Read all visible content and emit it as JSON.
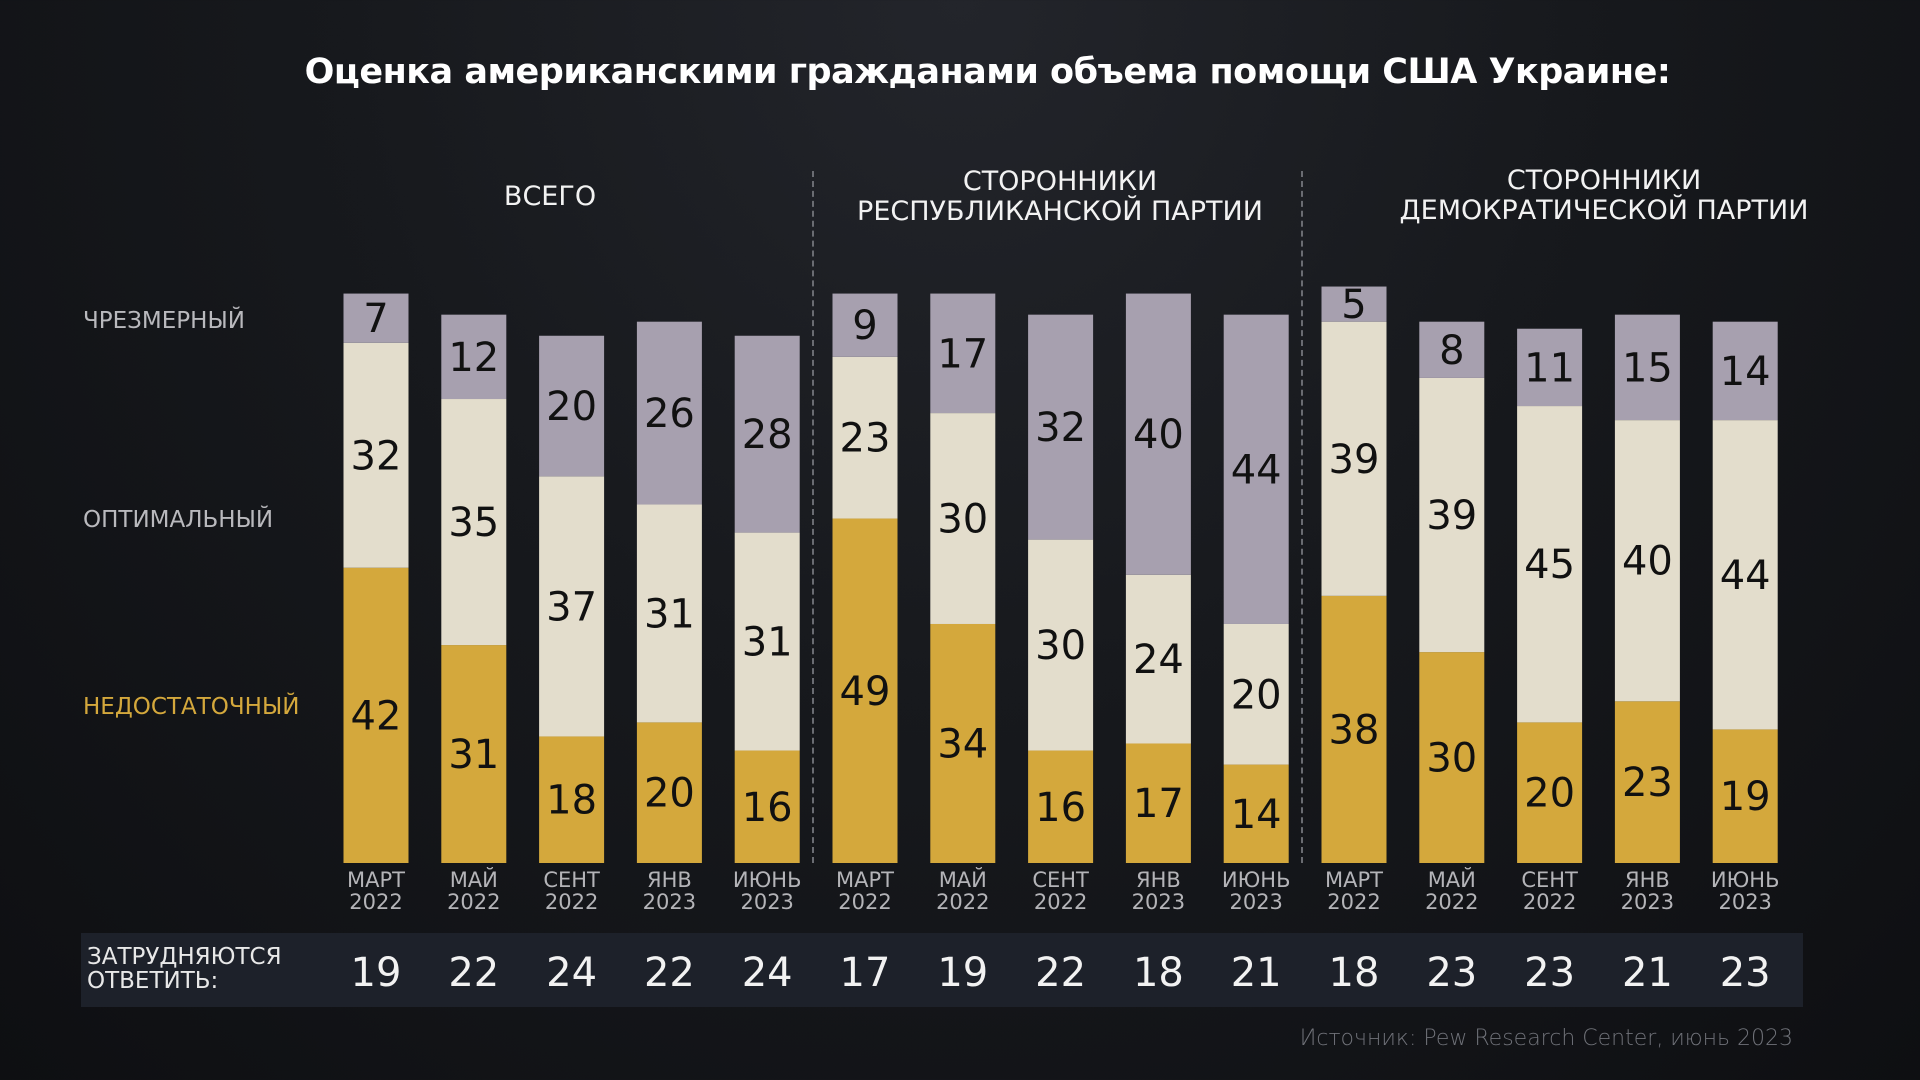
{
  "title": "Оценка американскими гражданами объема помощи США Украине:",
  "groups": [
    {
      "line1": "ВСЕГО",
      "line2": ""
    },
    {
      "line1": "СТОРОННИКИ",
      "line2": "РЕСПУБЛИКАНСКОЙ ПАРТИИ"
    },
    {
      "line1": "СТОРОННИКИ",
      "line2": "ДЕМОКРАТИЧЕСКОЙ ПАРТИИ"
    }
  ],
  "row_labels": {
    "excessive": "ЧРЕЗМЕРНЫЙ",
    "optimal": "ОПТИМАЛЬНЫЙ",
    "insufficient": "НЕДОСТАТОЧНЫЙ"
  },
  "band_label_line1": "ЗАТРУДНЯЮТСЯ",
  "band_label_line2": "ОТВЕТИТЬ:",
  "source": "Источник: Pew Research Center, июнь 2023",
  "chart_data": {
    "type": "bar",
    "stacked": true,
    "categories": [
      [
        "МАРТ",
        "2022"
      ],
      [
        "МАЙ",
        "2022"
      ],
      [
        "СЕНТ",
        "2022"
      ],
      [
        "ЯНВ",
        "2023"
      ],
      [
        "ИЮНЬ",
        "2023"
      ],
      [
        "МАРТ",
        "2022"
      ],
      [
        "МАЙ",
        "2022"
      ],
      [
        "СЕНТ",
        "2022"
      ],
      [
        "ЯНВ",
        "2023"
      ],
      [
        "ИЮНЬ",
        "2023"
      ],
      [
        "МАРТ",
        "2022"
      ],
      [
        "МАЙ",
        "2022"
      ],
      [
        "СЕНТ",
        "2022"
      ],
      [
        "ЯНВ",
        "2023"
      ],
      [
        "ИЮНЬ",
        "2023"
      ]
    ],
    "series": [
      {
        "name": "НЕДОСТАТОЧНЫЙ",
        "color": "#d4a83c",
        "values": [
          42,
          31,
          18,
          20,
          16,
          49,
          34,
          16,
          17,
          14,
          38,
          30,
          20,
          23,
          19
        ]
      },
      {
        "name": "ОПТИМАЛЬНЫЙ",
        "color": "#e3ddcc",
        "values": [
          32,
          35,
          37,
          31,
          31,
          23,
          30,
          30,
          24,
          20,
          39,
          39,
          45,
          40,
          44
        ]
      },
      {
        "name": "ЧРЕЗМЕРНЫЙ",
        "color": "#a7a0af",
        "values": [
          7,
          12,
          20,
          26,
          28,
          9,
          17,
          32,
          40,
          44,
          5,
          8,
          11,
          15,
          14
        ]
      }
    ],
    "hard_to_answer": [
      19,
      22,
      24,
      22,
      24,
      17,
      19,
      22,
      18,
      21,
      18,
      23,
      23,
      21,
      23
    ],
    "grid": false
  }
}
